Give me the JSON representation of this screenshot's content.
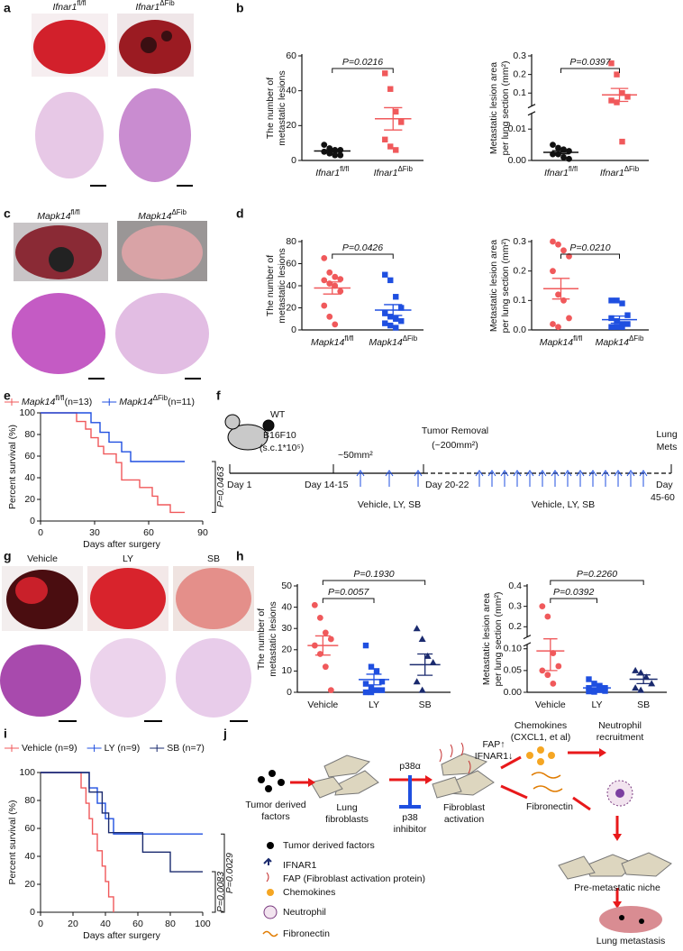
{
  "panel_labels": [
    "a",
    "b",
    "c",
    "d",
    "e",
    "f",
    "g",
    "h",
    "i",
    "j"
  ],
  "image_labels": {
    "a": [
      "Ifnar1fl/fl",
      "Ifnar1ΔFib"
    ],
    "c": [
      "Mapk14fl/fl",
      "Mapk14ΔFib"
    ],
    "g": [
      "Vehicle",
      "LY",
      "SB"
    ]
  },
  "chart_data": [
    {
      "type": "dotplot",
      "ylabel": [
        "The number of",
        "metastatic lesions"
      ],
      "categories": [
        "Ifnar1fl/fl",
        "Ifnar1ΔFib"
      ],
      "groups": [
        {
          "color": "#111111",
          "marker": "circle",
          "values": [
            9,
            7,
            6,
            6,
            5,
            4,
            3,
            3
          ],
          "mean": 5.4,
          "sem": 0.7
        },
        {
          "color": "#f0595b",
          "marker": "square",
          "values": [
            50,
            41,
            28,
            22,
            12,
            8,
            6
          ],
          "mean": 23.9,
          "sem": 6.4,
          "p_label": "P=0.0216"
        }
      ],
      "ylim": [
        0,
        60
      ],
      "yticks": [
        0,
        20,
        40,
        60
      ]
    },
    {
      "type": "dotplot",
      "ylabel": [
        "Metastatic lesion area",
        "per lung section (mm²)"
      ],
      "categories": [
        "Ifnar1fl/fl",
        "Ifnar1ΔFib"
      ],
      "groups": [
        {
          "color": "#111111",
          "marker": "circle",
          "values": [
            0.005,
            0.004,
            0.0035,
            0.003,
            0.002,
            0.002,
            0.001,
            0.0005
          ],
          "mean": 0.0026,
          "sem": 0.0005
        },
        {
          "color": "#f0595b",
          "marker": "square",
          "values": [
            0.26,
            0.2,
            0.1,
            0.08,
            0.06,
            0.05,
            0.006
          ],
          "mean": 0.09,
          "sem": 0.035,
          "p_label": "P=0.0397"
        }
      ],
      "ylim": [
        0,
        0.3
      ],
      "axis_break": [
        0.015,
        0.03
      ],
      "yticks": [
        {
          "value": 0,
          "label": "0.00"
        },
        0.01,
        0.1,
        0.2,
        0.3
      ]
    },
    {
      "type": "dotplot",
      "ylabel": [
        "The number of",
        "metastatic lesions"
      ],
      "categories": [
        "Mapk14fl/fl",
        "Mapk14ΔFib"
      ],
      "groups": [
        {
          "color": "#f0595b",
          "marker": "circle",
          "values": [
            65,
            52,
            48,
            46,
            45,
            42,
            40,
            35,
            22,
            12,
            5
          ],
          "mean": 38,
          "sem": 5.5
        },
        {
          "color": "#1f4fe0",
          "marker": "square",
          "values": [
            50,
            45,
            30,
            20,
            15,
            12,
            10,
            8,
            6,
            4,
            2
          ],
          "mean": 18,
          "sem": 4.9,
          "p_label": "P=0.0426"
        }
      ],
      "ylim": [
        0,
        80
      ],
      "yticks": [
        0,
        20,
        40,
        60,
        80
      ]
    },
    {
      "type": "dotplot",
      "ylabel": [
        "Metastatic lesion area",
        "per lung section (mm²)"
      ],
      "categories": [
        "Mapk14fl/fl",
        "Mapk14ΔFib"
      ],
      "groups": [
        {
          "color": "#f0595b",
          "marker": "circle",
          "values": [
            0.3,
            0.29,
            0.27,
            0.25,
            0.2,
            0.12,
            0.1,
            0.04,
            0.02,
            0.01
          ],
          "mean": 0.14,
          "sem": 0.035
        },
        {
          "color": "#1f4fe0",
          "marker": "square",
          "values": [
            0.1,
            0.1,
            0.09,
            0.05,
            0.04,
            0.03,
            0.02,
            0.02,
            0.01,
            0.01,
            0.01
          ],
          "mean": 0.035,
          "sem": 0.012,
          "p_label": "P=0.0210"
        }
      ],
      "ylim": [
        0,
        0.3
      ],
      "yticks": [
        {
          "value": 0,
          "label": "0.0"
        },
        0.1,
        0.2,
        0.3
      ]
    },
    {
      "type": "survival",
      "ylabel": "Percent survival (%)",
      "xlabel": "Days after surgery",
      "xlim": [
        0,
        90
      ],
      "xticks": [
        0,
        30,
        60,
        90
      ],
      "ylim": [
        0,
        100
      ],
      "yticks": [
        0,
        20,
        40,
        60,
        80,
        100
      ],
      "series": [
        {
          "name": "Mapk14fl/fl(n=13)",
          "color": "#f0595b",
          "x": [
            0,
            20,
            25,
            28,
            32,
            35,
            42,
            45,
            55,
            62,
            65,
            72,
            80
          ],
          "values": [
            100,
            92,
            85,
            77,
            69,
            62,
            54,
            38,
            31,
            23,
            15,
            8,
            8
          ]
        },
        {
          "name": "Mapk14ΔFib(n=11)",
          "color": "#1f4fe0",
          "x": [
            0,
            28,
            33,
            38,
            45,
            50,
            80
          ],
          "values": [
            100,
            91,
            82,
            73,
            64,
            55,
            55
          ],
          "p_label": "P=0.0463"
        }
      ]
    },
    {
      "type": "dotplot",
      "ylabel": [
        "The number of",
        "metastatic lesions"
      ],
      "categories": [
        "Vehicle",
        "LY",
        "SB"
      ],
      "groups": [
        {
          "color": "#f0595b",
          "marker": "circle",
          "values": [
            41,
            35,
            28,
            25,
            22,
            18,
            12,
            1
          ],
          "mean": 22,
          "sem": 4.5
        },
        {
          "color": "#1f4fe0",
          "marker": "square",
          "values": [
            22,
            12,
            10,
            5,
            4,
            2,
            1,
            1,
            0,
            0
          ],
          "mean": 6,
          "sem": 2.5,
          "p_label": "P=0.0057"
        },
        {
          "color": "#1a2a6e",
          "marker": "triangle",
          "values": [
            30,
            25,
            17,
            14,
            5,
            1
          ],
          "mean": 13,
          "sem": 5,
          "p_label": "P=0.1930"
        }
      ],
      "ylim": [
        0,
        50
      ],
      "yticks": [
        0,
        10,
        20,
        30,
        40,
        50
      ]
    },
    {
      "type": "dotplot",
      "ylabel": [
        "Metastatic lesion area",
        "per lung section (mm²)"
      ],
      "categories": [
        "Vehicle",
        "LY",
        "SB"
      ],
      "groups": [
        {
          "color": "#f0595b",
          "marker": "circle",
          "values": [
            0.3,
            0.25,
            0.09,
            0.06,
            0.05,
            0.04,
            0.02
          ],
          "mean": 0.095,
          "sem": 0.045
        },
        {
          "color": "#1f4fe0",
          "marker": "square",
          "values": [
            0.03,
            0.02,
            0.015,
            0.01,
            0.01,
            0.005,
            0.005,
            0.003,
            0.002,
            0.001
          ],
          "mean": 0.01,
          "sem": 0.004,
          "p_label": "P=0.0392"
        },
        {
          "color": "#1a2a6e",
          "marker": "triangle",
          "values": [
            0.05,
            0.045,
            0.035,
            0.02,
            0.01,
            0.005
          ],
          "mean": 0.03,
          "sem": 0.01,
          "p_label": "P=0.2260"
        }
      ],
      "ylim": [
        0,
        0.4
      ],
      "axis_break": [
        0.11,
        0.15
      ],
      "yticks": [
        {
          "value": 0,
          "label": "0.00"
        },
        0.05,
        {
          "value": 0.1,
          "label": "0.10"
        },
        0.2,
        0.3,
        0.4
      ]
    },
    {
      "type": "survival",
      "ylabel": "Percent survival (%)",
      "xlabel": "Days after surgery",
      "xlim": [
        0,
        100
      ],
      "xticks": [
        0,
        20,
        40,
        60,
        80,
        100
      ],
      "ylim": [
        0,
        100
      ],
      "yticks": [
        0,
        20,
        40,
        60,
        80,
        100
      ],
      "series": [
        {
          "name": "Vehicle (n=9)",
          "color": "#f0595b",
          "x": [
            0,
            25,
            28,
            30,
            32,
            35,
            38,
            40,
            42,
            45
          ],
          "values": [
            100,
            89,
            78,
            67,
            56,
            44,
            33,
            22,
            11,
            0
          ]
        },
        {
          "name": "LY (n=9)",
          "color": "#1f4fe0",
          "x": [
            0,
            30,
            35,
            40,
            45,
            50,
            100
          ],
          "values": [
            100,
            89,
            78,
            67,
            56,
            56,
            56
          ],
          "p_label": "P=0.0029"
        },
        {
          "name": "SB (n=7)",
          "color": "#1a2a6e",
          "x": [
            0,
            30,
            38,
            42,
            55,
            63,
            80,
            100
          ],
          "values": [
            100,
            86,
            71,
            57,
            57,
            43,
            29,
            29
          ],
          "p_label": "P=0.0083"
        }
      ]
    }
  ],
  "timeline": {
    "labels": [
      "WT",
      "B16F10",
      "(s.c.1*10⁵)",
      "~50mm²",
      "Tumor Removal",
      "(~200mm²)",
      "Lung",
      "Mets",
      "Day 1",
      "Day 14-15",
      "Day 20-22",
      "Day",
      "45-60",
      "Vehicle, LY, SB",
      "Vehicle, LY, SB"
    ]
  },
  "diagram": {
    "labels": [
      "Tumor derived",
      "factors",
      "Lung",
      "fibroblasts",
      "p38α",
      "p38",
      "inhibitor",
      "Fibroblast",
      "activation",
      "FAP↑",
      "IFNAR1↓",
      "Chemokines",
      "(CXCL1, et al)",
      "Neutrophil",
      "recruitment",
      "Fibronectin",
      "Pre-metastatic niche",
      "Lung metastasis"
    ],
    "legend": [
      "Tumor derived factors",
      "IFNAR1",
      "FAP (Fibroblast activation protein)",
      "Chemokines",
      "Neutrophil",
      "Fibronectin"
    ]
  }
}
